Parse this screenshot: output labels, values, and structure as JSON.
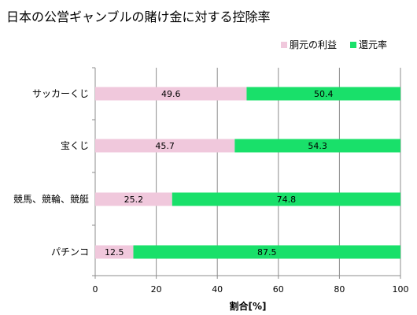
{
  "chart_data": {
    "type": "bar",
    "orientation": "horizontal",
    "stacked": true,
    "title": "日本の公営ギャンブルの賭け金に対する控除率",
    "categories": [
      "サッカーくじ",
      "宝くじ",
      "競馬、競輪、競艇",
      "パチンコ"
    ],
    "series": [
      {
        "name": "胴元の利益",
        "color": "#f0c8dc",
        "values": [
          49.6,
          45.7,
          25.2,
          12.5
        ]
      },
      {
        "name": "還元率",
        "color": "#19e06a",
        "values": [
          50.4,
          54.3,
          74.8,
          87.5
        ]
      }
    ],
    "xlabel": "割合[%]",
    "xlim": [
      0,
      100
    ],
    "xticks": [
      0,
      20,
      40,
      60,
      80,
      100
    ],
    "grid": "vertical",
    "legend_position": "top-right"
  }
}
